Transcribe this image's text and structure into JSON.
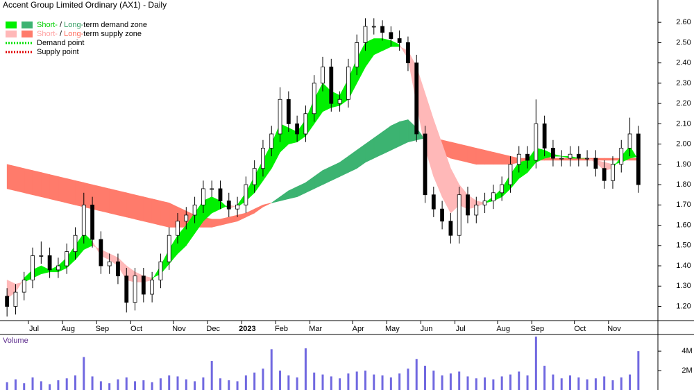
{
  "chart_data": {
    "type": "candlestick",
    "title": "Accent Group Limited Ordinary (AX1) - Daily",
    "categories": [
      null,
      null,
      null,
      "Jul",
      null,
      null,
      null,
      "Aug",
      null,
      null,
      null,
      "Sep",
      null,
      null,
      null,
      "Oct",
      null,
      null,
      null,
      null,
      "Nov",
      null,
      null,
      null,
      "Dec",
      null,
      null,
      null,
      "2023",
      null,
      null,
      null,
      "Feb",
      null,
      null,
      null,
      "Mar",
      null,
      null,
      null,
      null,
      "Apr",
      null,
      null,
      null,
      "May",
      null,
      null,
      null,
      "Jun",
      null,
      null,
      null,
      "Jul",
      null,
      null,
      null,
      null,
      "Aug",
      null,
      null,
      null,
      "Sep",
      null,
      null,
      null,
      null,
      "Oct",
      null,
      null,
      null,
      "Nov",
      null,
      null,
      null
    ],
    "ohlc": {
      "open": [
        1.25,
        1.2,
        1.27,
        1.33,
        1.45,
        1.45,
        1.38,
        1.4,
        1.47,
        1.55,
        1.7,
        1.53,
        1.4,
        1.42,
        1.35,
        1.22,
        1.35,
        1.26,
        1.33,
        1.42,
        1.55,
        1.62,
        1.65,
        1.7,
        1.78,
        1.78,
        1.72,
        1.68,
        1.7,
        1.8,
        1.88,
        1.98,
        2.05,
        2.22,
        2.1,
        2.05,
        2.15,
        2.3,
        2.38,
        2.2,
        2.22,
        2.38,
        2.5,
        2.58,
        2.58,
        2.55,
        2.52,
        2.5,
        2.4,
        2.05,
        1.75,
        1.68,
        1.62,
        1.55,
        1.75,
        1.65,
        1.7,
        1.72,
        1.76,
        1.8,
        1.9,
        1.95,
        1.92,
        2.1,
        1.98,
        1.93,
        1.93,
        1.95,
        1.93,
        1.93,
        1.88,
        1.82,
        1.9,
        1.98,
        2.05
      ],
      "high": [
        1.29,
        1.31,
        1.37,
        1.49,
        1.52,
        1.49,
        1.44,
        1.51,
        1.59,
        1.76,
        1.74,
        1.57,
        1.46,
        1.46,
        1.39,
        1.39,
        1.39,
        1.37,
        1.46,
        1.59,
        1.66,
        1.69,
        1.74,
        1.82,
        1.82,
        1.82,
        1.76,
        1.74,
        1.84,
        1.92,
        2.02,
        2.09,
        2.28,
        2.26,
        2.14,
        2.19,
        2.34,
        2.43,
        2.42,
        2.26,
        2.42,
        2.54,
        2.62,
        2.62,
        2.61,
        2.58,
        2.56,
        2.53,
        2.44,
        2.09,
        1.79,
        1.72,
        1.66,
        1.79,
        1.79,
        1.74,
        1.76,
        1.8,
        1.84,
        1.94,
        1.99,
        1.99,
        2.22,
        2.14,
        2.02,
        1.97,
        1.99,
        1.99,
        1.97,
        1.97,
        1.92,
        1.94,
        2.02,
        2.13,
        2.09
      ],
      "low": [
        1.15,
        1.16,
        1.23,
        1.29,
        1.41,
        1.34,
        1.34,
        1.36,
        1.43,
        1.51,
        1.49,
        1.36,
        1.36,
        1.31,
        1.17,
        1.18,
        1.22,
        1.22,
        1.29,
        1.38,
        1.51,
        1.58,
        1.61,
        1.66,
        1.74,
        1.68,
        1.64,
        1.64,
        1.66,
        1.76,
        1.84,
        1.94,
        2.01,
        2.06,
        2.01,
        2.01,
        2.11,
        2.26,
        2.16,
        2.16,
        2.18,
        2.34,
        2.46,
        2.54,
        2.51,
        2.48,
        2.46,
        2.36,
        2.01,
        1.71,
        1.64,
        1.58,
        1.51,
        1.51,
        1.61,
        1.61,
        1.66,
        1.68,
        1.72,
        1.76,
        1.86,
        1.88,
        1.88,
        1.94,
        1.89,
        1.89,
        1.89,
        1.89,
        1.89,
        1.84,
        1.78,
        1.78,
        1.86,
        1.94,
        1.76
      ],
      "close": [
        1.2,
        1.27,
        1.33,
        1.45,
        1.45,
        1.38,
        1.4,
        1.47,
        1.55,
        1.7,
        1.53,
        1.4,
        1.42,
        1.35,
        1.22,
        1.35,
        1.26,
        1.33,
        1.42,
        1.55,
        1.62,
        1.65,
        1.7,
        1.78,
        1.78,
        1.72,
        1.68,
        1.7,
        1.8,
        1.88,
        1.98,
        2.05,
        2.22,
        2.1,
        2.05,
        2.15,
        2.3,
        2.38,
        2.2,
        2.22,
        2.38,
        2.5,
        2.58,
        2.58,
        2.55,
        2.52,
        2.5,
        2.4,
        2.05,
        1.75,
        1.68,
        1.62,
        1.55,
        1.75,
        1.65,
        1.7,
        1.72,
        1.76,
        1.8,
        1.9,
        1.95,
        1.92,
        2.1,
        1.98,
        1.93,
        1.93,
        1.95,
        1.93,
        1.93,
        1.88,
        1.82,
        1.9,
        1.98,
        2.05,
        1.8
      ]
    },
    "short_zone": {
      "demand_color": "#00f000",
      "supply_color": "#ffb8b8",
      "fast": [
        1.24,
        1.27,
        1.34,
        1.38,
        1.4,
        1.38,
        1.4,
        1.44,
        1.5,
        1.56,
        1.52,
        1.45,
        1.43,
        1.4,
        1.33,
        1.32,
        1.32,
        1.33,
        1.4,
        1.48,
        1.55,
        1.6,
        1.66,
        1.72,
        1.74,
        1.72,
        1.68,
        1.7,
        1.76,
        1.84,
        1.92,
        2.0,
        2.1,
        2.08,
        2.06,
        2.12,
        2.22,
        2.3,
        2.26,
        2.24,
        2.32,
        2.42,
        2.5,
        2.52,
        2.52,
        2.51,
        2.49,
        2.42,
        2.2,
        1.98,
        1.84,
        1.74,
        1.66,
        1.7,
        1.68,
        1.69,
        1.71,
        1.74,
        1.78,
        1.85,
        1.91,
        1.92,
        1.98,
        1.97,
        1.95,
        1.94,
        1.94,
        1.93,
        1.93,
        1.91,
        1.87,
        1.88,
        1.94,
        1.99,
        1.92
      ],
      "slow": [
        1.33,
        1.31,
        1.32,
        1.34,
        1.36,
        1.37,
        1.37,
        1.39,
        1.43,
        1.48,
        1.5,
        1.48,
        1.46,
        1.44,
        1.4,
        1.37,
        1.35,
        1.34,
        1.36,
        1.41,
        1.46,
        1.5,
        1.56,
        1.62,
        1.66,
        1.68,
        1.7,
        1.69,
        1.72,
        1.76,
        1.82,
        1.88,
        1.96,
        2.0,
        2.01,
        2.04,
        2.1,
        2.16,
        2.18,
        2.19,
        2.22,
        2.3,
        2.38,
        2.44,
        2.46,
        2.48,
        2.48,
        2.46,
        2.38,
        2.25,
        2.12,
        2.0,
        1.88,
        1.8,
        1.75,
        1.72,
        1.71,
        1.72,
        1.74,
        1.78,
        1.83,
        1.86,
        1.91,
        1.93,
        1.94,
        1.94,
        1.93,
        1.93,
        1.93,
        1.92,
        1.91,
        1.9,
        1.91,
        1.93,
        1.94
      ]
    },
    "long_zone": {
      "demand_color": "#3cb371",
      "supply_color": "#ff7b6b",
      "fast": [
        1.78,
        1.77,
        1.76,
        1.75,
        1.74,
        1.73,
        1.72,
        1.71,
        1.7,
        1.69,
        1.68,
        1.67,
        1.66,
        1.65,
        1.64,
        1.63,
        1.62,
        1.61,
        1.6,
        1.59,
        1.59,
        1.59,
        1.59,
        1.59,
        1.59,
        1.6,
        1.61,
        1.62,
        1.64,
        1.66,
        1.69,
        1.71,
        1.74,
        1.77,
        1.79,
        1.81,
        1.84,
        1.87,
        1.89,
        1.91,
        1.94,
        1.97,
        2.0,
        2.03,
        2.06,
        2.09,
        2.11,
        2.12,
        2.08,
        2.02,
        1.98,
        1.95,
        1.93,
        1.92,
        1.91,
        1.9,
        1.9,
        1.9,
        1.9,
        1.9,
        1.91,
        1.91,
        1.92,
        1.92,
        1.92,
        1.92,
        1.92,
        1.92,
        1.92,
        1.92,
        1.92,
        1.92,
        1.92,
        1.92,
        1.92
      ],
      "slow": [
        1.9,
        1.89,
        1.88,
        1.87,
        1.86,
        1.85,
        1.84,
        1.83,
        1.82,
        1.81,
        1.8,
        1.79,
        1.78,
        1.77,
        1.76,
        1.75,
        1.74,
        1.73,
        1.72,
        1.71,
        1.69,
        1.67,
        1.65,
        1.64,
        1.63,
        1.63,
        1.64,
        1.65,
        1.66,
        1.68,
        1.7,
        1.71,
        1.72,
        1.73,
        1.74,
        1.76,
        1.78,
        1.8,
        1.82,
        1.84,
        1.86,
        1.88,
        1.91,
        1.93,
        1.95,
        1.97,
        1.99,
        2.01,
        2.02,
        2.03,
        2.03,
        2.02,
        2.01,
        2.0,
        1.99,
        1.98,
        1.97,
        1.96,
        1.95,
        1.94,
        1.93,
        1.93,
        1.93,
        1.94,
        1.93,
        1.93,
        1.93,
        1.93,
        1.93,
        1.93,
        1.93,
        1.93,
        1.93,
        1.93,
        1.93
      ]
    },
    "ylim": [
      1.13,
      2.71
    ],
    "yticks": [
      {
        "value": 1.2,
        "label": "1.20"
      },
      {
        "value": 1.3,
        "label": "1.30"
      },
      {
        "value": 1.4,
        "label": "1.40"
      },
      {
        "value": 1.5,
        "label": "1.50"
      },
      {
        "value": 1.6,
        "label": "1.60"
      },
      {
        "value": 1.7,
        "label": "1.70"
      },
      {
        "value": 1.8,
        "label": "1.80"
      },
      {
        "value": 1.9,
        "label": "1.90"
      },
      {
        "value": 2.0,
        "label": "2.00"
      },
      {
        "value": 2.1,
        "label": "2.10"
      },
      {
        "value": 2.2,
        "label": "2.20"
      },
      {
        "value": 2.3,
        "label": "2.30"
      },
      {
        "value": 2.4,
        "label": "2.40"
      },
      {
        "value": 2.5,
        "label": "2.50"
      },
      {
        "value": 2.6,
        "label": "2.60"
      }
    ],
    "legend": [
      {
        "swatches": [
          "#00f000",
          "#3cb371"
        ],
        "parts": [
          "Short-",
          " / ",
          "Long-",
          "term demand zone"
        ],
        "part_colors": [
          "#00d000",
          "#000000",
          "#2e9b5e",
          "#000000"
        ]
      },
      {
        "swatches": [
          "#ffb8b8",
          "#ff7b6b"
        ],
        "parts": [
          "Short-",
          " / ",
          "Long-",
          "term supply zone"
        ],
        "part_colors": [
          "#ffa0a0",
          "#000000",
          "#ff6b5b",
          "#000000"
        ]
      },
      {
        "line_color": "#00e000",
        "label": "Demand point"
      },
      {
        "line_color": "#e00000",
        "label": "Supply point"
      }
    ],
    "volume": {
      "label": "Volume",
      "color": "#7068e0",
      "values": [
        800000,
        1100000,
        700000,
        1300000,
        900000,
        600000,
        1000000,
        1200000,
        1500000,
        3400000,
        1400000,
        900000,
        700000,
        1100000,
        1300000,
        900000,
        1000000,
        800000,
        1200000,
        1500000,
        1400000,
        1100000,
        900000,
        1300000,
        3000000,
        1200000,
        1000000,
        900000,
        1500000,
        1800000,
        2200000,
        4200000,
        2000000,
        1500000,
        1300000,
        4300000,
        1800000,
        1600000,
        1400000,
        1200000,
        1700000,
        1900000,
        2000000,
        1600000,
        1500000,
        1300000,
        1700000,
        2200000,
        3200000,
        2500000,
        2000000,
        1500000,
        1700000,
        1900000,
        1400000,
        1200000,
        1300000,
        1100000,
        1400000,
        1600000,
        1900000,
        1500000,
        5500000,
        2500000,
        1600000,
        1200000,
        1500000,
        1300000,
        1100000,
        1200000,
        1400000,
        1000000,
        1300000,
        1600000,
        4000000
      ],
      "ylim": [
        0,
        5650000
      ],
      "yticks": [
        {
          "value": 2000000,
          "label": "2M"
        },
        {
          "value": 4000000,
          "label": "4M"
        }
      ]
    }
  }
}
